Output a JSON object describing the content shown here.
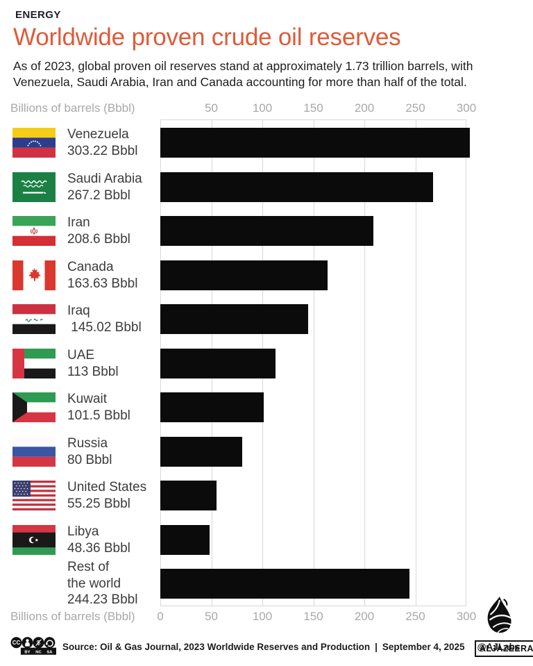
{
  "kicker": "ENERGY",
  "title": "Worldwide proven crude oil reserves",
  "subtitle": "As of 2023, global proven oil reserves stand at approximately 1.73 trillion barrels, with Venezuela, Saudi Arabia, Iran and Canada accounting for more than half of the total.",
  "colors": {
    "accent": "#e05a38",
    "bar": "#0b0b0b",
    "axis_text": "#a8a8a8",
    "gridline": "#d8d8d8",
    "label_text": "#3c3c3c"
  },
  "chart_data": {
    "type": "bar",
    "orientation": "horizontal",
    "title": "Worldwide proven crude oil reserves",
    "xlabel_top": "Billions of barrels (Bbbl)",
    "xlabel_bottom": "Billions of barrels (Bbbl)",
    "unit": "Bbbl",
    "xlim": [
      0,
      300
    ],
    "ticks_top": [
      50,
      100,
      150,
      200,
      250,
      300
    ],
    "ticks_bottom": [
      0,
      50,
      100,
      150,
      200,
      250,
      300
    ],
    "grid": true,
    "legend": false,
    "categories": [
      "Venezuela",
      "Saudi Arabia",
      "Iran",
      "Canada",
      "Iraq",
      "UAE",
      "Kuwait",
      "Russia",
      "United States",
      "Libya",
      "Rest of the world"
    ],
    "values": [
      303.22,
      267.2,
      208.6,
      163.63,
      145.02,
      113,
      101.5,
      80,
      55.25,
      48.36,
      244.23
    ],
    "rows": [
      {
        "country": "Venezuela",
        "name_lines": [
          "Venezuela"
        ],
        "value": 303.22,
        "value_label": "303.22 Bbbl",
        "flag": "venezuela"
      },
      {
        "country": "Saudi Arabia",
        "name_lines": [
          "Saudi Arabia"
        ],
        "value": 267.2,
        "value_label": "267.2 Bbbl",
        "flag": "saudi-arabia"
      },
      {
        "country": "Iran",
        "name_lines": [
          "Iran"
        ],
        "value": 208.6,
        "value_label": "208.6 Bbbl",
        "flag": "iran"
      },
      {
        "country": "Canada",
        "name_lines": [
          "Canada"
        ],
        "value": 163.63,
        "value_label": "163.63 Bbbl",
        "flag": "canada"
      },
      {
        "country": "Iraq",
        "name_lines": [
          "Iraq"
        ],
        "value": 145.02,
        "value_label": " 145.02 Bbbl",
        "flag": "iraq"
      },
      {
        "country": "UAE",
        "name_lines": [
          "UAE"
        ],
        "value": 113,
        "value_label": "113 Bbbl",
        "flag": "uae"
      },
      {
        "country": "Kuwait",
        "name_lines": [
          "Kuwait"
        ],
        "value": 101.5,
        "value_label": "101.5 Bbbl",
        "flag": "kuwait"
      },
      {
        "country": "Russia",
        "name_lines": [
          "Russia"
        ],
        "value": 80,
        "value_label": "80 Bbbl",
        "flag": "russia"
      },
      {
        "country": "United States",
        "name_lines": [
          "United States"
        ],
        "value": 55.25,
        "value_label": "55.25 Bbbl",
        "flag": "united-states"
      },
      {
        "country": "Libya",
        "name_lines": [
          "Libya"
        ],
        "value": 48.36,
        "value_label": "48.36 Bbbl",
        "flag": "libya"
      },
      {
        "country": "Rest of the world",
        "name_lines": [
          "Rest of",
          "the world"
        ],
        "value": 244.23,
        "value_label": "244.23 Bbbl",
        "flag": null
      }
    ]
  },
  "footer": {
    "license": "CC BY-NC-SA",
    "cc_label": "CC",
    "license_letters": [
      "BY",
      "NC",
      "SA"
    ],
    "source": "Source: Oil & Gas Journal, 2023 Worldwide Reserves and Production",
    "separator": "|",
    "date": "September 4, 2025",
    "credit": "@AJLabs",
    "brand": "ALJAZEERA"
  }
}
